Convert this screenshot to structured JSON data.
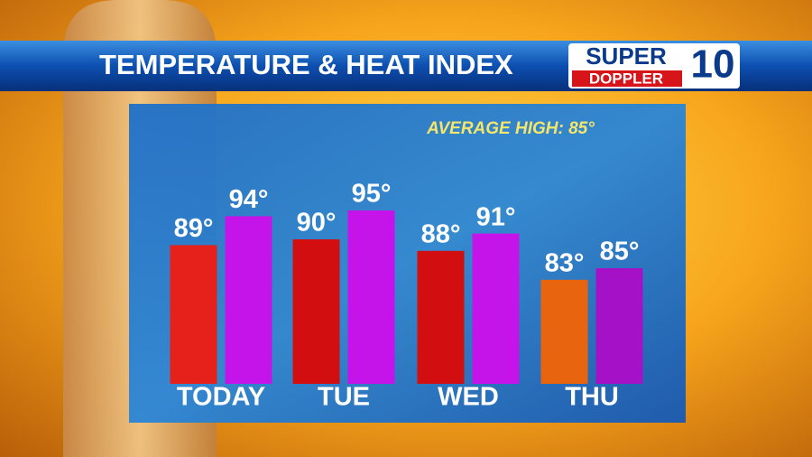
{
  "chart_data": {
    "type": "bar",
    "title": "TEMPERATURE & HEAT INDEX",
    "annotation": "AVERAGE HIGH: 85°",
    "categories": [
      "TODAY",
      "TUE",
      "WED",
      "THU"
    ],
    "series": [
      {
        "colors": [
          "#e6201a",
          "#d30e10",
          "#d30e10",
          "#e8640e"
        ],
        "values": [
          89,
          90,
          88,
          83
        ],
        "value_labels": [
          "89°",
          "90°",
          "88°",
          "83°"
        ]
      },
      {
        "colors": [
          "#c414ea",
          "#c414ea",
          "#c414ea",
          "#a511c6"
        ],
        "values": [
          94,
          95,
          91,
          85
        ],
        "value_labels": [
          "94°",
          "95°",
          "91°",
          "85°"
        ]
      }
    ],
    "ylim": [
      65,
      100
    ]
  },
  "logo": {
    "line1": "SUPER",
    "line2": "DOPPLER",
    "number": "10"
  }
}
